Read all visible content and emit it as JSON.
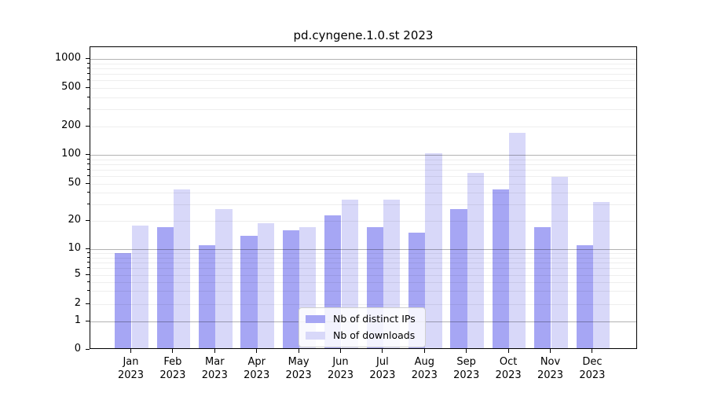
{
  "chart_data": {
    "type": "bar",
    "title": "pd.cyngene.1.0.st 2023",
    "months": [
      "Jan",
      "Feb",
      "Mar",
      "Apr",
      "May",
      "Jun",
      "Jul",
      "Aug",
      "Sep",
      "Oct",
      "Nov",
      "Dec"
    ],
    "year": "2023",
    "series": [
      {
        "name": "Nb of distinct IPs",
        "color": "#a6a6f4",
        "values": [
          9,
          17,
          11,
          14,
          16,
          23,
          17,
          15,
          27,
          44,
          17,
          11
        ]
      },
      {
        "name": "Nb of downloads",
        "color": "#d8d8f9",
        "values": [
          18,
          44,
          27,
          19,
          17,
          34,
          34,
          105,
          65,
          170,
          59,
          32
        ]
      }
    ],
    "yscale": "symlog",
    "yticks": [
      0,
      1,
      2,
      5,
      10,
      20,
      50,
      100,
      200,
      500,
      1000
    ],
    "minor_gridline_values": [
      2,
      3,
      4,
      5,
      6,
      7,
      8,
      9,
      20,
      30,
      40,
      50,
      60,
      70,
      80,
      90,
      200,
      300,
      400,
      500,
      600,
      700,
      800,
      900
    ],
    "major_gridline_values": [
      1,
      10,
      100,
      1000
    ],
    "ylim": [
      0,
      1300
    ],
    "grid": true,
    "legend_position": "lower-center",
    "colors": {
      "axis": "#000000",
      "grid_major": "#b0b0b0",
      "grid_minor": "#e8e8e8",
      "background": "#ffffff"
    }
  }
}
